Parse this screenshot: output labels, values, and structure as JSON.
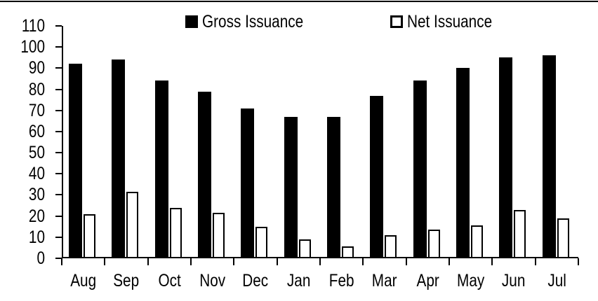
{
  "chart": {
    "background": "#ffffff",
    "axis_color": "#000000",
    "text_color": "#000000",
    "top_border_color": "#000000"
  },
  "legend": {
    "items": [
      {
        "label": "Gross Issuance",
        "swatch": "filled-black-square"
      },
      {
        "label": "Net Issuance",
        "swatch": "outlined-white-square"
      }
    ]
  },
  "chart_data": {
    "type": "bar",
    "title": "",
    "xlabel": "",
    "ylabel": "",
    "categories": [
      "Aug",
      "Sep",
      "Oct",
      "Nov",
      "Dec",
      "Jan",
      "Feb",
      "Mar",
      "Apr",
      "May",
      "Jun",
      "Jul"
    ],
    "series": [
      {
        "name": "Gross Issuance",
        "fill": "#000000",
        "outline": "#000000",
        "values": [
          92,
          94,
          84,
          79,
          71,
          67,
          67,
          77,
          84,
          90,
          95,
          96
        ]
      },
      {
        "name": "Net Issuance",
        "fill": "#ffffff",
        "outline": "#000000",
        "values": [
          21,
          31.5,
          24,
          21.5,
          15,
          9,
          5.5,
          11,
          13.5,
          15.5,
          23,
          19
        ]
      }
    ],
    "ylim": [
      0,
      110
    ],
    "y_ticks": [
      0,
      10,
      20,
      30,
      40,
      50,
      60,
      70,
      80,
      90,
      100,
      110
    ],
    "grid": false,
    "legend_position": "top-inside"
  }
}
